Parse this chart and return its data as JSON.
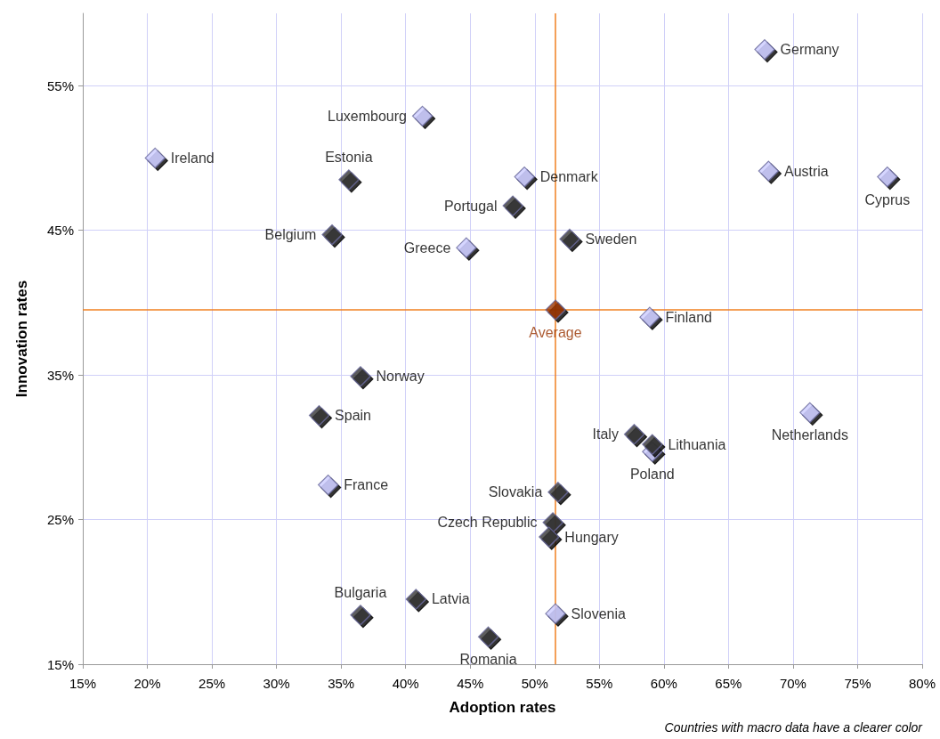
{
  "chart_data": {
    "type": "scatter",
    "xlabel": "Adoption rates",
    "ylabel": "Innovation rates",
    "annotations": [
      "Countries with macro data have a clearer color"
    ],
    "marker": "diamond",
    "grid": true,
    "xlim": [
      15,
      80
    ],
    "ylim": [
      15,
      60
    ],
    "xticks": [
      {
        "value": 15,
        "label": "15%"
      },
      {
        "value": 20,
        "label": "20%"
      },
      {
        "value": 25,
        "label": "25%"
      },
      {
        "value": 30,
        "label": "30%"
      },
      {
        "value": 35,
        "label": "35%"
      },
      {
        "value": 40,
        "label": "40%"
      },
      {
        "value": 45,
        "label": "45%"
      },
      {
        "value": 50,
        "label": "50%"
      },
      {
        "value": 55,
        "label": "55%"
      },
      {
        "value": 60,
        "label": "60%"
      },
      {
        "value": 65,
        "label": "65%"
      },
      {
        "value": 70,
        "label": "70%"
      },
      {
        "value": 75,
        "label": "75%"
      },
      {
        "value": 80,
        "label": "80%"
      }
    ],
    "yticks": [
      {
        "value": 15,
        "label": "15%"
      },
      {
        "value": 25,
        "label": "25%"
      },
      {
        "value": 35,
        "label": "35%"
      },
      {
        "value": 45,
        "label": "45%"
      },
      {
        "value": 55,
        "label": "55%"
      }
    ],
    "ref_lines": [
      {
        "axis": "x",
        "value": 51.6,
        "color": "#f08020"
      },
      {
        "axis": "y",
        "value": 39.5,
        "color": "#f08020"
      }
    ],
    "series": [
      {
        "color": "#ccccff",
        "x": [
          67.8,
          68.1,
          77.3,
          20.6,
          41.3,
          49.2,
          44.7,
          58.9,
          71.3,
          59.1,
          34.0,
          51.6
        ],
        "values": [
          57.5,
          49.1,
          48.7,
          50.0,
          52.9,
          48.7,
          43.8,
          39.0,
          32.4,
          29.7,
          27.4,
          18.5
        ],
        "value_labels": [
          "Germany",
          "Austria",
          "Cyprus",
          "Ireland",
          "Luxembourg",
          "Denmark",
          "Greece",
          "Finland",
          "Netherlands",
          "Poland",
          "France",
          "Slovenia"
        ]
      },
      {
        "color": "#333333",
        "x": [
          35.6,
          48.3,
          34.3,
          52.7,
          36.5,
          33.3,
          57.7,
          59.1,
          51.8,
          51.4,
          51.1,
          36.5,
          40.8,
          46.4
        ],
        "values": [
          48.5,
          46.7,
          44.7,
          44.4,
          34.9,
          32.2,
          30.9,
          30.2,
          26.9,
          24.8,
          23.8,
          18.4,
          19.5,
          16.9
        ],
        "value_labels": [
          "Estonia",
          "Portugal",
          "Belgium",
          "Sweden",
          "Norway",
          "Spain",
          "Italy",
          "Lithuania",
          "Slovakia",
          "Czech Republic",
          "Hungary",
          "Bulgaria",
          "Latvia",
          "Romania"
        ]
      },
      {
        "name": "Average",
        "color": "#993300",
        "x": [
          51.6
        ],
        "values": [
          39.5
        ]
      }
    ]
  }
}
